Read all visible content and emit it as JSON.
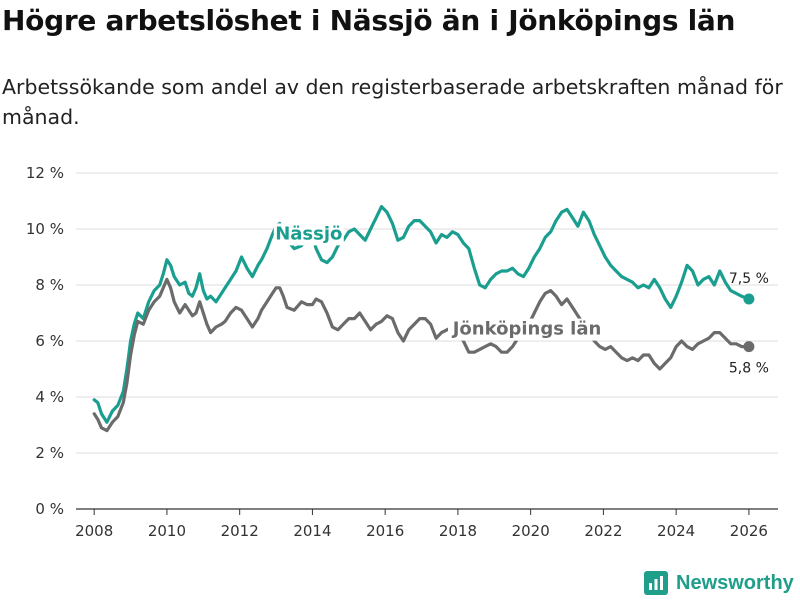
{
  "header": {
    "title": "Högre arbetslöshet i Nässjö än i Jönköpings län",
    "subtitle": "Arbetssökande som andel av den registerbaserade arbetskraften månad för månad."
  },
  "brand": {
    "name": "Newsworthy",
    "color": "#1f9e89"
  },
  "chart_data": {
    "type": "line",
    "title": "Högre arbetslöshet i Nässjö än i Jönköpings län",
    "subtitle": "Arbetssökande som andel av den registerbaserade arbetskraften månad för månad.",
    "xlabel": "",
    "ylabel": "",
    "xlim": [
      2007.5,
      2026.8
    ],
    "ylim": [
      0,
      12
    ],
    "xticks": [
      2008,
      2010,
      2012,
      2014,
      2016,
      2018,
      2020,
      2022,
      2024,
      2026
    ],
    "xtick_labels": [
      "2008",
      "2010",
      "2012",
      "2014",
      "2016",
      "2018",
      "2020",
      "2022",
      "2024",
      "2026"
    ],
    "yticks": [
      0,
      2,
      4,
      6,
      8,
      10,
      12
    ],
    "ytick_labels": [
      "0 %",
      "2 %",
      "4 %",
      "6 %",
      "8 %",
      "10 %",
      "12 %"
    ],
    "grid": true,
    "legend": "inline",
    "series": [
      {
        "name": "Nässjö",
        "color": "#1a9e8f",
        "end_label": "7,5 %",
        "x": [
          2008.0,
          2008.1,
          2008.2,
          2008.35,
          2008.5,
          2008.65,
          2008.8,
          2008.9,
          2009.0,
          2009.1,
          2009.2,
          2009.35,
          2009.5,
          2009.65,
          2009.8,
          2009.9,
          2010.0,
          2010.1,
          2010.2,
          2010.35,
          2010.5,
          2010.6,
          2010.7,
          2010.8,
          2010.9,
          2011.0,
          2011.1,
          2011.2,
          2011.35,
          2011.5,
          2011.6,
          2011.75,
          2011.9,
          2012.05,
          2012.2,
          2012.35,
          2012.5,
          2012.6,
          2012.75,
          2012.9,
          2013.0,
          2013.1,
          2013.2,
          2013.3,
          2013.5,
          2013.7,
          2013.85,
          2014.0,
          2014.1,
          2014.25,
          2014.4,
          2014.55,
          2014.7,
          2014.85,
          2015.0,
          2015.15,
          2015.3,
          2015.45,
          2015.6,
          2015.75,
          2015.9,
          2016.05,
          2016.2,
          2016.35,
          2016.5,
          2016.65,
          2016.8,
          2016.95,
          2017.1,
          2017.25,
          2017.4,
          2017.55,
          2017.7,
          2017.85,
          2018.0,
          2018.15,
          2018.3,
          2018.45,
          2018.6,
          2018.75,
          2018.9,
          2019.05,
          2019.2,
          2019.35,
          2019.5,
          2019.65,
          2019.8,
          2019.95,
          2020.1,
          2020.25,
          2020.4,
          2020.55,
          2020.7,
          2020.85,
          2021.0,
          2021.15,
          2021.3,
          2021.45,
          2021.6,
          2021.75,
          2021.9,
          2022.05,
          2022.2,
          2022.35,
          2022.5,
          2022.65,
          2022.8,
          2022.95,
          2023.1,
          2023.25,
          2023.4,
          2023.55,
          2023.7,
          2023.85,
          2024.0,
          2024.15,
          2024.3,
          2024.45,
          2024.6,
          2024.75,
          2024.9,
          2025.05,
          2025.2,
          2025.35,
          2025.5,
          2025.65,
          2025.8,
          2026.0
        ],
        "values": [
          3.9,
          3.8,
          3.4,
          3.1,
          3.5,
          3.7,
          4.2,
          5.0,
          6.0,
          6.6,
          7.0,
          6.8,
          7.4,
          7.8,
          8.0,
          8.4,
          8.9,
          8.7,
          8.3,
          8.0,
          8.1,
          7.7,
          7.6,
          7.9,
          8.4,
          7.8,
          7.5,
          7.6,
          7.4,
          7.7,
          7.9,
          8.2,
          8.5,
          9.0,
          8.6,
          8.3,
          8.7,
          8.9,
          9.3,
          9.8,
          10.1,
          10.2,
          9.8,
          9.6,
          9.3,
          9.4,
          9.7,
          9.8,
          9.3,
          8.9,
          8.8,
          9.0,
          9.4,
          9.6,
          9.9,
          10.0,
          9.8,
          9.6,
          10.0,
          10.4,
          10.8,
          10.6,
          10.2,
          9.6,
          9.7,
          10.1,
          10.3,
          10.3,
          10.1,
          9.9,
          9.5,
          9.8,
          9.7,
          9.9,
          9.8,
          9.5,
          9.3,
          8.6,
          8.0,
          7.9,
          8.2,
          8.4,
          8.5,
          8.5,
          8.6,
          8.4,
          8.3,
          8.6,
          9.0,
          9.3,
          9.7,
          9.9,
          10.3,
          10.6,
          10.7,
          10.4,
          10.1,
          10.6,
          10.3,
          9.8,
          9.4,
          9.0,
          8.7,
          8.5,
          8.3,
          8.2,
          8.1,
          7.9,
          8.0,
          7.9,
          8.2,
          7.9,
          7.5,
          7.2,
          7.6,
          8.1,
          8.7,
          8.5,
          8.0,
          8.2,
          8.3,
          8.0,
          8.5,
          8.1,
          7.8,
          7.7,
          7.6,
          7.5
        ]
      },
      {
        "name": "Jönköpings län",
        "color": "#6b6b6b",
        "end_label": "5,8 %",
        "x": [
          2008.0,
          2008.1,
          2008.2,
          2008.35,
          2008.5,
          2008.65,
          2008.8,
          2008.9,
          2009.0,
          2009.1,
          2009.2,
          2009.35,
          2009.5,
          2009.65,
          2009.8,
          2009.9,
          2010.0,
          2010.1,
          2010.2,
          2010.35,
          2010.5,
          2010.6,
          2010.7,
          2010.8,
          2010.9,
          2011.0,
          2011.1,
          2011.2,
          2011.35,
          2011.5,
          2011.6,
          2011.75,
          2011.9,
          2012.05,
          2012.2,
          2012.35,
          2012.5,
          2012.6,
          2012.75,
          2012.9,
          2013.0,
          2013.1,
          2013.2,
          2013.3,
          2013.5,
          2013.7,
          2013.85,
          2014.0,
          2014.1,
          2014.25,
          2014.4,
          2014.55,
          2014.7,
          2014.85,
          2015.0,
          2015.15,
          2015.3,
          2015.45,
          2015.6,
          2015.75,
          2015.9,
          2016.05,
          2016.2,
          2016.35,
          2016.5,
          2016.65,
          2016.8,
          2016.95,
          2017.1,
          2017.25,
          2017.4,
          2017.55,
          2017.7,
          2017.85,
          2018.0,
          2018.15,
          2018.3,
          2018.45,
          2018.6,
          2018.75,
          2018.9,
          2019.05,
          2019.2,
          2019.35,
          2019.5,
          2019.65,
          2019.8,
          2019.95,
          2020.1,
          2020.25,
          2020.4,
          2020.55,
          2020.7,
          2020.85,
          2021.0,
          2021.15,
          2021.3,
          2021.45,
          2021.6,
          2021.75,
          2021.9,
          2022.05,
          2022.2,
          2022.35,
          2022.5,
          2022.65,
          2022.8,
          2022.95,
          2023.1,
          2023.25,
          2023.4,
          2023.55,
          2023.7,
          2023.85,
          2024.0,
          2024.15,
          2024.3,
          2024.45,
          2024.6,
          2024.75,
          2024.9,
          2025.05,
          2025.2,
          2025.35,
          2025.5,
          2025.65,
          2025.8,
          2026.0
        ],
        "values": [
          3.4,
          3.2,
          2.9,
          2.8,
          3.1,
          3.3,
          3.8,
          4.5,
          5.5,
          6.2,
          6.7,
          6.6,
          7.1,
          7.4,
          7.6,
          7.9,
          8.2,
          7.9,
          7.4,
          7.0,
          7.3,
          7.1,
          6.9,
          7.0,
          7.4,
          7.0,
          6.6,
          6.3,
          6.5,
          6.6,
          6.7,
          7.0,
          7.2,
          7.1,
          6.8,
          6.5,
          6.8,
          7.1,
          7.4,
          7.7,
          7.9,
          7.9,
          7.6,
          7.2,
          7.1,
          7.4,
          7.3,
          7.3,
          7.5,
          7.4,
          7.0,
          6.5,
          6.4,
          6.6,
          6.8,
          6.8,
          7.0,
          6.7,
          6.4,
          6.6,
          6.7,
          6.9,
          6.8,
          6.3,
          6.0,
          6.4,
          6.6,
          6.8,
          6.8,
          6.6,
          6.1,
          6.3,
          6.4,
          6.5,
          6.3,
          6.0,
          5.6,
          5.6,
          5.7,
          5.8,
          5.9,
          5.8,
          5.6,
          5.6,
          5.8,
          6.1,
          6.3,
          6.6,
          7.0,
          7.4,
          7.7,
          7.8,
          7.6,
          7.3,
          7.5,
          7.2,
          6.9,
          6.6,
          6.3,
          6.0,
          5.8,
          5.7,
          5.8,
          5.6,
          5.4,
          5.3,
          5.4,
          5.3,
          5.5,
          5.5,
          5.2,
          5.0,
          5.2,
          5.4,
          5.8,
          6.0,
          5.8,
          5.7,
          5.9,
          6.0,
          6.1,
          6.3,
          6.3,
          6.1,
          5.9,
          5.9,
          5.8,
          5.8
        ]
      }
    ]
  }
}
